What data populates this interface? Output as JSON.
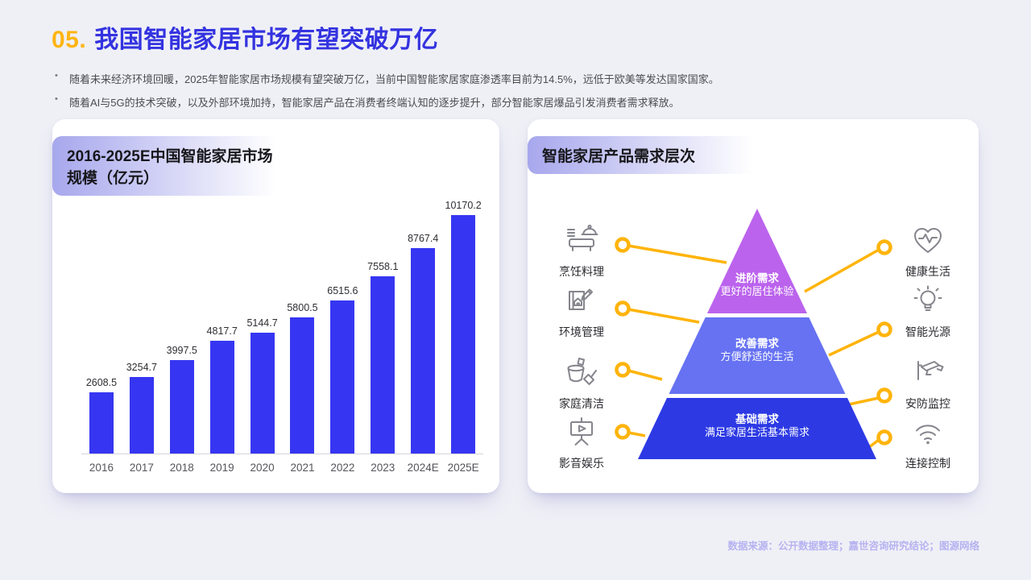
{
  "page": {
    "title_number": "05.",
    "title_text": "我国智能家居市场有望突破万亿",
    "bullets": [
      "随着未来经济环境回暖，2025年智能家居市场规模有望突破万亿，当前中国智能家居家庭渗透率目前为14.5%，远低于欧美等发达国家国家。",
      "随着AI与5G的技术突破，以及外部环境加持，智能家居产品在消费者终端认知的逐步提升，部分智能家居爆品引发消费者需求释放。"
    ],
    "footer_source": "数据来源：公开数据整理；嘉世咨询研究结论；图源网络",
    "accent_colors": {
      "title_number": "#FFB411",
      "title_text": "#3433E0",
      "footer": "#B6B2F1",
      "background": "#EFF0F6"
    }
  },
  "chart_card": {
    "title": "2016-2025E中国智能家居市场规模（亿元）"
  },
  "chart_data": {
    "type": "bar",
    "title": "2016-2025E中国智能家居市场规模（亿元）",
    "categories": [
      "2016",
      "2017",
      "2018",
      "2019",
      "2020",
      "2021",
      "2022",
      "2023",
      "2024E",
      "2025E"
    ],
    "values": [
      2608.5,
      3254.7,
      3997.5,
      4817.7,
      5144.7,
      5800.5,
      6515.6,
      7558.1,
      8767.4,
      10170.2
    ],
    "xlabel": "",
    "ylabel": "市场规模（亿元）",
    "ylim": [
      0,
      10500
    ],
    "grid": false,
    "legend": "none",
    "bar_color": "#3636F2",
    "value_labels": "above bars"
  },
  "pyramid_card": {
    "title": "智能家居产品需求层次",
    "connector_color": "#FFB40B",
    "tiers": [
      {
        "name": "进阶需求",
        "desc": "更好的居住体验",
        "color": "#BB63ED"
      },
      {
        "name": "改善需求",
        "desc": "方便舒适的生活",
        "color": "#6672F2"
      },
      {
        "name": "基础需求",
        "desc": "满足家居生活基本需求",
        "color": "#2D3AE4"
      }
    ],
    "left_items": [
      {
        "label": "烹饪料理",
        "icon": "cooking-pot-icon"
      },
      {
        "label": "环境管理",
        "icon": "map-house-icon"
      },
      {
        "label": "家庭清洁",
        "icon": "bucket-shovel-icon"
      },
      {
        "label": "影音娱乐",
        "icon": "projector-screen-icon"
      }
    ],
    "right_items": [
      {
        "label": "健康生活",
        "icon": "heart-pulse-icon"
      },
      {
        "label": "智能光源",
        "icon": "light-bulb-icon"
      },
      {
        "label": "安防监控",
        "icon": "cctv-camera-icon"
      },
      {
        "label": "连接控制",
        "icon": "wifi-icon"
      }
    ]
  }
}
